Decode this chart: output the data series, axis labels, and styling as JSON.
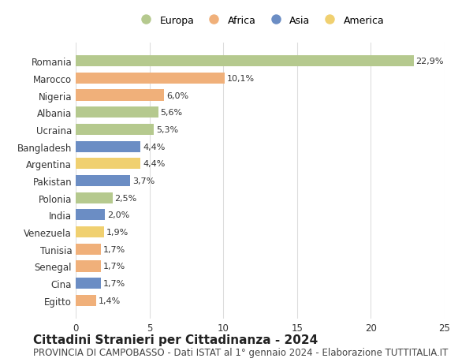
{
  "countries": [
    "Romania",
    "Marocco",
    "Nigeria",
    "Albania",
    "Ucraina",
    "Bangladesh",
    "Argentina",
    "Pakistan",
    "Polonia",
    "India",
    "Venezuela",
    "Tunisia",
    "Senegal",
    "Cina",
    "Egitto"
  ],
  "values": [
    22.9,
    10.1,
    6.0,
    5.6,
    5.3,
    4.4,
    4.4,
    3.7,
    2.5,
    2.0,
    1.9,
    1.7,
    1.7,
    1.7,
    1.4
  ],
  "labels": [
    "22,9%",
    "10,1%",
    "6,0%",
    "5,6%",
    "5,3%",
    "4,4%",
    "4,4%",
    "3,7%",
    "2,5%",
    "2,0%",
    "1,9%",
    "1,7%",
    "1,7%",
    "1,7%",
    "1,4%"
  ],
  "regions": [
    "Europa",
    "Africa",
    "Africa",
    "Europa",
    "Europa",
    "Asia",
    "America",
    "Asia",
    "Europa",
    "Asia",
    "America",
    "Africa",
    "Africa",
    "Asia",
    "Africa"
  ],
  "region_colors": {
    "Europa": "#b5c98e",
    "Africa": "#f0b07a",
    "Asia": "#6b8dc4",
    "America": "#f0d070"
  },
  "legend_order": [
    "Europa",
    "Africa",
    "Asia",
    "America"
  ],
  "title": "Cittadini Stranieri per Cittadinanza - 2024",
  "subtitle": "PROVINCIA DI CAMPOBASSO - Dati ISTAT al 1° gennaio 2024 - Elaborazione TUTTITALIA.IT",
  "xlim": [
    0,
    25
  ],
  "xticks": [
    0,
    5,
    10,
    15,
    20,
    25
  ],
  "background_color": "#ffffff",
  "grid_color": "#dddddd",
  "bar_height": 0.65,
  "title_fontsize": 11,
  "subtitle_fontsize": 8.5,
  "label_fontsize": 8,
  "tick_fontsize": 8.5,
  "legend_fontsize": 9
}
